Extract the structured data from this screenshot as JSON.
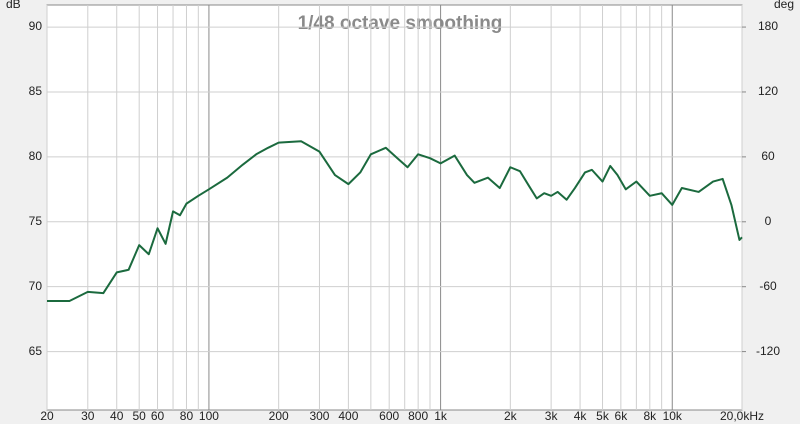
{
  "chart_data": {
    "type": "line",
    "title": "1/48 octave smoothing",
    "y_label": "dB",
    "y2_label": "deg",
    "xscale": "log",
    "grid": true,
    "color": "#1b6a3e",
    "xlim": [
      20,
      20000
    ],
    "xticks": [
      20,
      30,
      40,
      50,
      60,
      80,
      100,
      200,
      300,
      400,
      600,
      800,
      {
        "value": 1000,
        "label": "1k"
      },
      {
        "value": 2000,
        "label": "2k"
      },
      {
        "value": 3000,
        "label": "3k"
      },
      {
        "value": 4000,
        "label": "4k"
      },
      {
        "value": 5000,
        "label": "5k"
      },
      {
        "value": 6000,
        "label": "6k"
      },
      {
        "value": 8000,
        "label": "8k"
      },
      {
        "value": 10000,
        "label": "10k"
      },
      {
        "value": 20000,
        "label": "20,0kHz"
      }
    ],
    "xminor": [
      70,
      90,
      500,
      700,
      900,
      7000,
      9000
    ],
    "ylim": [
      60.5,
      91.7
    ],
    "yticks": [
      65,
      70,
      75,
      80,
      85,
      90
    ],
    "y2lim": [
      -174,
      200.4
    ],
    "y2ticks": [
      -120,
      -60,
      0,
      60,
      120,
      180
    ],
    "x": [
      20,
      25,
      30,
      35,
      40,
      45,
      50,
      55,
      60,
      65,
      70,
      75,
      80,
      90,
      100,
      120,
      140,
      160,
      180,
      200,
      250,
      300,
      350,
      400,
      450,
      500,
      580,
      650,
      720,
      800,
      900,
      1000,
      1150,
      1300,
      1400,
      1600,
      1800,
      2000,
      2200,
      2400,
      2600,
      2800,
      3000,
      3200,
      3500,
      3800,
      4200,
      4500,
      5000,
      5400,
      5800,
      6300,
      7000,
      8000,
      9000,
      10000,
      11000,
      13000,
      15000,
      16500,
      18000,
      19500,
      20000
    ],
    "values": [
      68.9,
      68.9,
      69.6,
      69.5,
      71.1,
      71.3,
      73.2,
      72.5,
      74.5,
      73.3,
      75.8,
      75.5,
      76.4,
      77.0,
      77.5,
      78.4,
      79.4,
      80.2,
      80.7,
      81.1,
      81.2,
      80.4,
      78.6,
      77.9,
      78.8,
      80.2,
      80.7,
      79.9,
      79.2,
      80.2,
      79.9,
      79.5,
      80.1,
      78.6,
      78.0,
      78.4,
      77.6,
      79.2,
      78.9,
      77.8,
      76.8,
      77.2,
      77.0,
      77.3,
      76.7,
      77.6,
      78.8,
      79.0,
      78.1,
      79.3,
      78.6,
      77.5,
      78.1,
      77.0,
      77.2,
      76.3,
      77.6,
      77.3,
      78.1,
      78.3,
      76.3,
      73.6,
      73.8
    ]
  }
}
